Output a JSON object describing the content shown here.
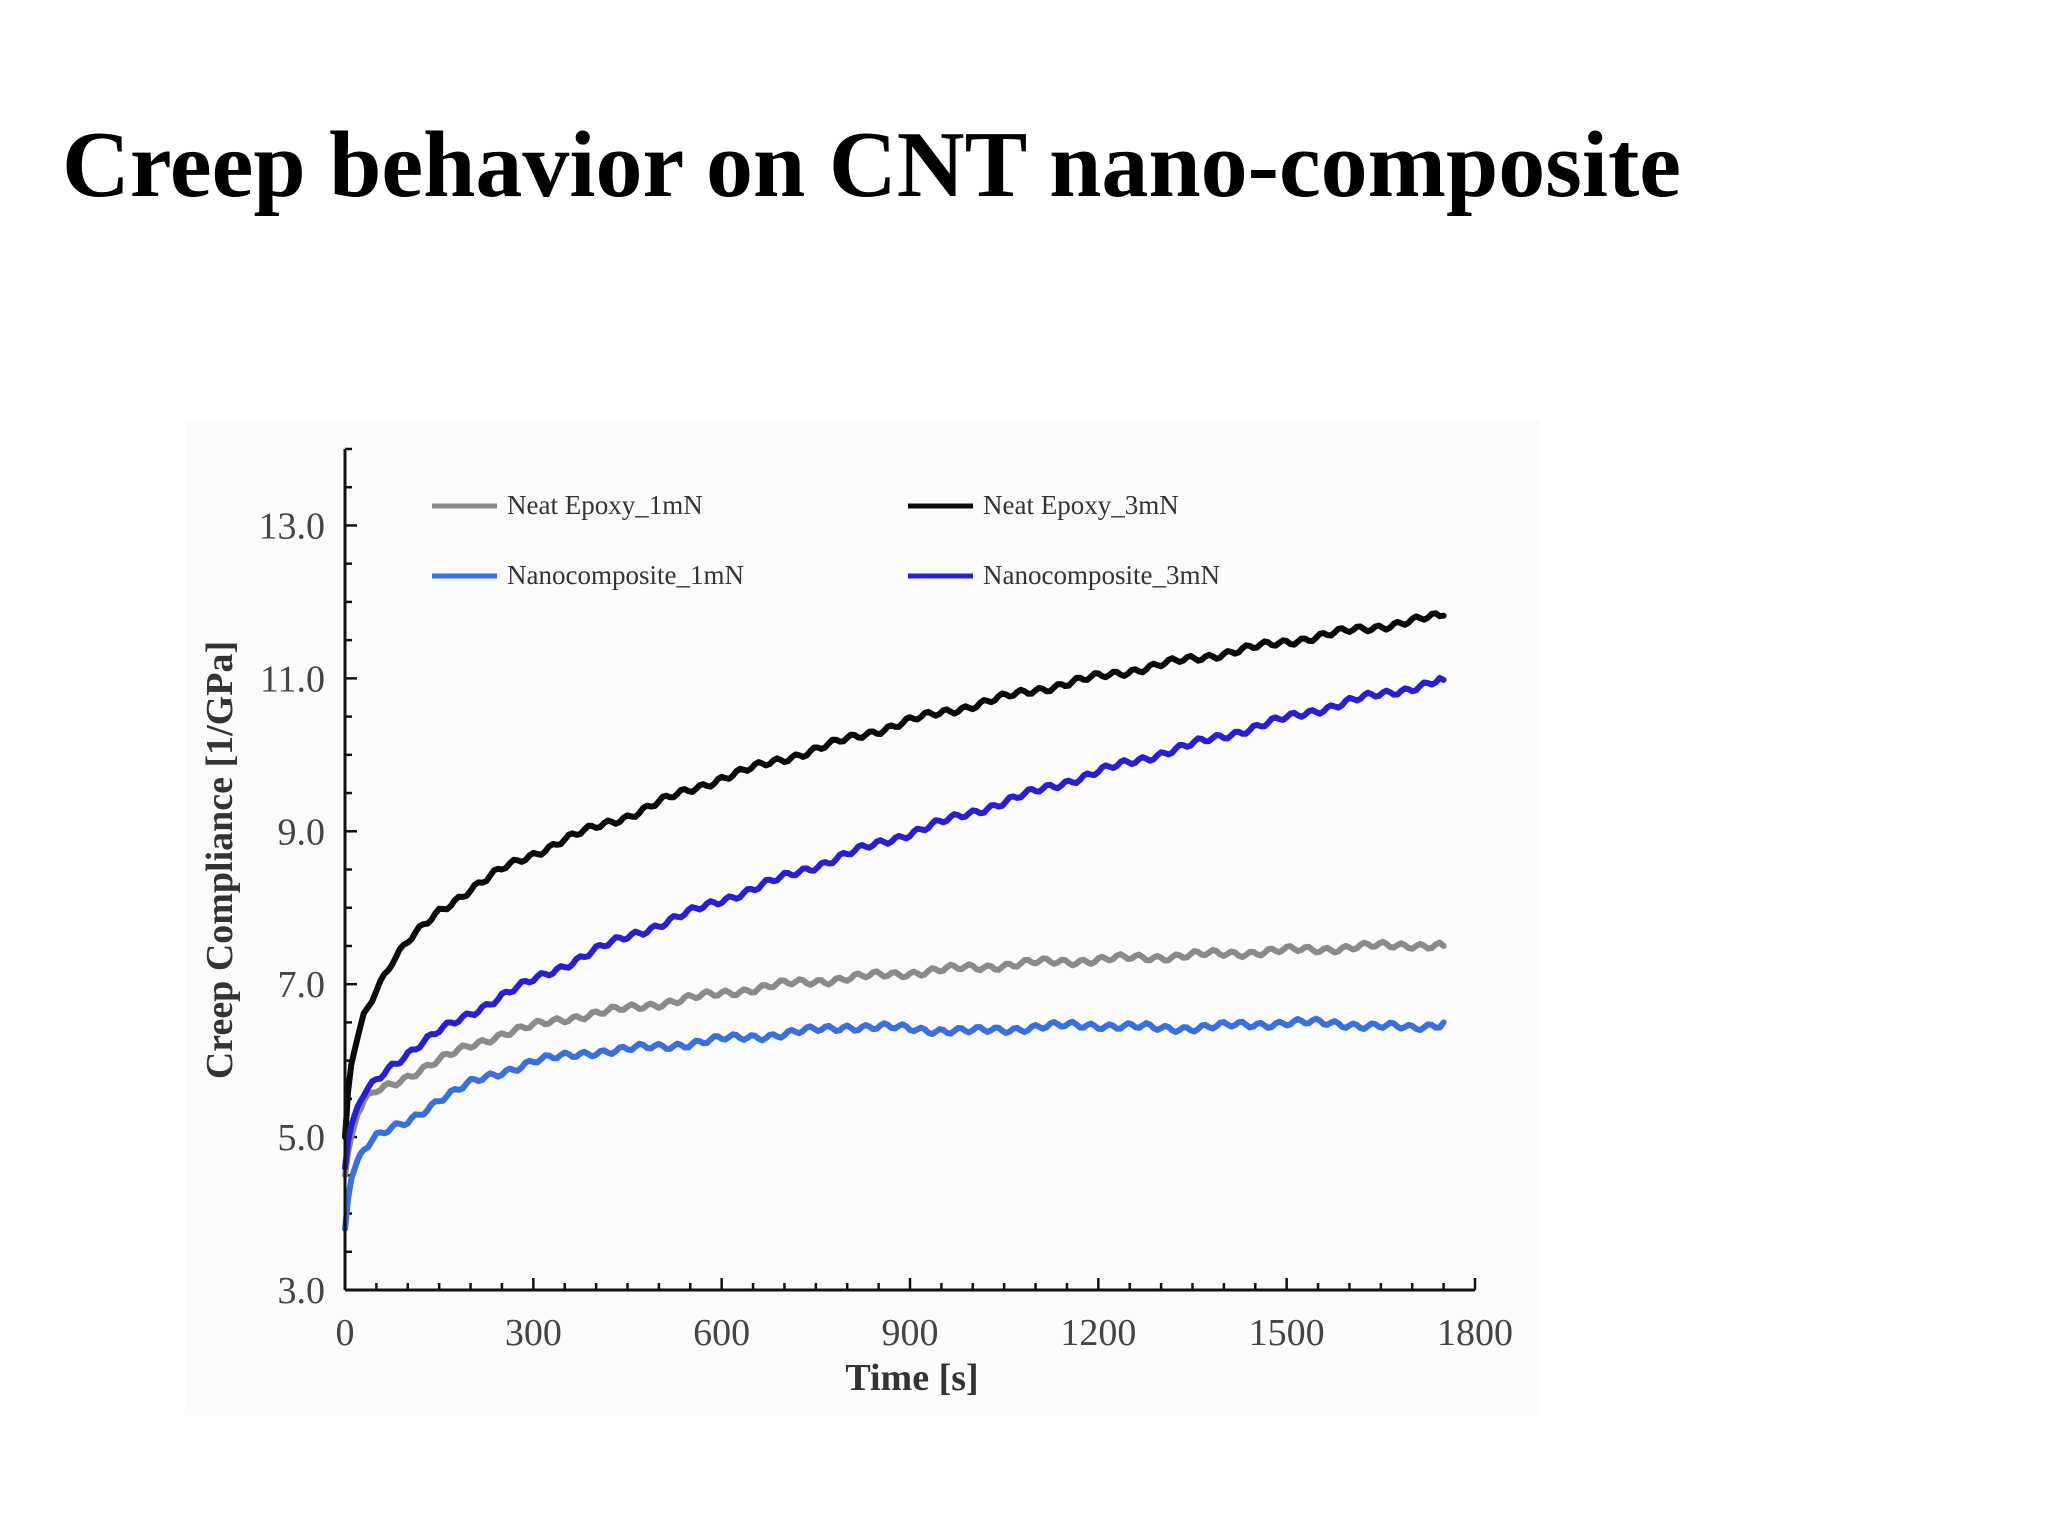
{
  "slide": {
    "title": "Creep behavior on CNT nano-composite"
  },
  "chart_data": {
    "type": "line",
    "title": "",
    "xlabel": "Time [s]",
    "ylabel": "Creep Compliance [1/GPa]",
    "xlim": [
      0,
      1800
    ],
    "ylim": [
      3.0,
      14.0
    ],
    "xticks": [
      0,
      300,
      600,
      900,
      1200,
      1500,
      1800
    ],
    "xtick_labels": [
      "0",
      "300",
      "600",
      "900",
      "1200",
      "1500",
      "1800"
    ],
    "yticks": [
      3.0,
      5.0,
      7.0,
      9.0,
      11.0,
      13.0
    ],
    "ytick_labels": [
      "3.0",
      "5.0",
      "7.0",
      "9.0",
      "11.0",
      "13.0"
    ],
    "grid": false,
    "legend": {
      "placement": "top",
      "columns": 2
    },
    "series": [
      {
        "name": "Neat Epoxy_1mN",
        "color": "#8a8a8a",
        "x": [
          0,
          5,
          10,
          20,
          30,
          50,
          75,
          100,
          150,
          200,
          250,
          300,
          350,
          400,
          450,
          500,
          600,
          700,
          800,
          900,
          1000,
          1100,
          1200,
          1300,
          1400,
          1500,
          1600,
          1700,
          1750
        ],
        "y": [
          4.5,
          4.8,
          5.0,
          5.3,
          5.45,
          5.6,
          5.7,
          5.8,
          6.0,
          6.2,
          6.35,
          6.45,
          6.55,
          6.62,
          6.68,
          6.75,
          6.88,
          7.0,
          7.08,
          7.15,
          7.22,
          7.28,
          7.32,
          7.36,
          7.4,
          7.44,
          7.48,
          7.52,
          7.5
        ]
      },
      {
        "name": "Neat Epoxy_3mN",
        "color": "#0a0a0a",
        "x": [
          0,
          5,
          10,
          20,
          30,
          50,
          75,
          100,
          150,
          200,
          250,
          300,
          350,
          400,
          450,
          500,
          600,
          700,
          800,
          900,
          1000,
          1100,
          1200,
          1300,
          1400,
          1500,
          1600,
          1700,
          1750
        ],
        "y": [
          5.0,
          5.6,
          5.95,
          6.3,
          6.6,
          6.95,
          7.3,
          7.55,
          7.95,
          8.25,
          8.5,
          8.7,
          8.9,
          9.05,
          9.2,
          9.38,
          9.7,
          9.95,
          10.2,
          10.45,
          10.65,
          10.85,
          11.02,
          11.18,
          11.33,
          11.48,
          11.62,
          11.75,
          11.82
        ]
      },
      {
        "name": "Nanocomposite_1mN",
        "color": "#3a6fe0",
        "x": [
          0,
          5,
          10,
          20,
          30,
          50,
          75,
          100,
          150,
          200,
          250,
          300,
          350,
          400,
          450,
          500,
          600,
          700,
          800,
          900,
          1000,
          1100,
          1200,
          1300,
          1400,
          1500,
          1600,
          1700,
          1750
        ],
        "y": [
          3.8,
          4.2,
          4.45,
          4.7,
          4.85,
          5.0,
          5.1,
          5.2,
          5.5,
          5.7,
          5.85,
          6.0,
          6.05,
          6.12,
          6.15,
          6.18,
          6.28,
          6.35,
          6.45,
          6.42,
          6.38,
          6.44,
          6.47,
          6.42,
          6.45,
          6.5,
          6.48,
          6.42,
          6.5
        ]
      },
      {
        "name": "Nanocomposite_3mN",
        "color": "#2a1fd0",
        "x": [
          0,
          5,
          10,
          20,
          30,
          50,
          75,
          100,
          150,
          200,
          250,
          300,
          350,
          400,
          450,
          500,
          600,
          700,
          800,
          900,
          1000,
          1100,
          1200,
          1300,
          1400,
          1500,
          1600,
          1700,
          1750
        ],
        "y": [
          4.6,
          4.95,
          5.15,
          5.4,
          5.55,
          5.75,
          5.95,
          6.1,
          6.38,
          6.62,
          6.85,
          7.05,
          7.25,
          7.45,
          7.62,
          7.78,
          8.1,
          8.4,
          8.7,
          8.98,
          9.25,
          9.52,
          9.78,
          10.02,
          10.25,
          10.48,
          10.7,
          10.88,
          10.98
        ]
      }
    ]
  }
}
